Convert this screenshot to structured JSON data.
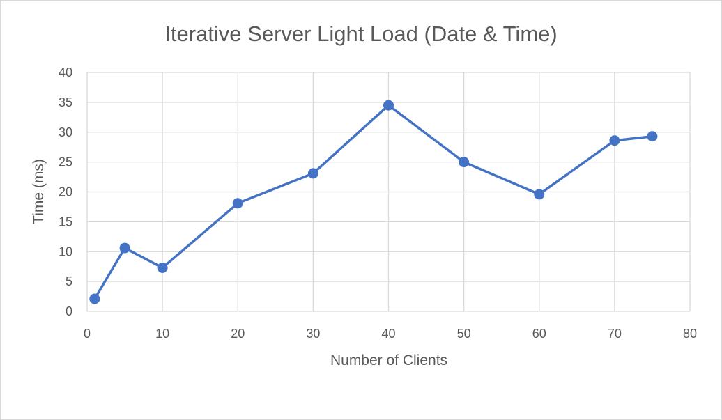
{
  "chart_data": {
    "type": "line",
    "title": "Iterative Server Light Load (Date & Time)",
    "xlabel": "Number of Clients",
    "ylabel": "Time (ms)",
    "xlim": [
      0,
      80
    ],
    "ylim": [
      0,
      40
    ],
    "x_ticks": [
      0,
      10,
      20,
      30,
      40,
      50,
      60,
      70,
      80
    ],
    "y_ticks": [
      0,
      5,
      10,
      15,
      20,
      25,
      30,
      35,
      40
    ],
    "grid": true,
    "legend": "none",
    "series": [
      {
        "color": "#4472c4",
        "marker": "circle",
        "points": [
          {
            "x": 1,
            "y": 2.1
          },
          {
            "x": 5,
            "y": 10.6
          },
          {
            "x": 10,
            "y": 7.3
          },
          {
            "x": 20,
            "y": 18.1
          },
          {
            "x": 30,
            "y": 23.1
          },
          {
            "x": 40,
            "y": 34.5
          },
          {
            "x": 50,
            "y": 25.0
          },
          {
            "x": 60,
            "y": 19.6
          },
          {
            "x": 70,
            "y": 28.6
          },
          {
            "x": 75,
            "y": 29.3
          }
        ]
      }
    ],
    "colors": {
      "gridline": "#d9d9d9",
      "axis_text": "#595959",
      "series": "#4472c4"
    }
  }
}
